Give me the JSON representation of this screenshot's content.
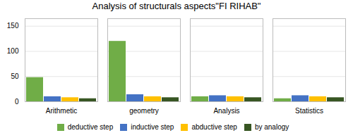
{
  "chart_data": {
    "type": "bar",
    "title": "Analysis of structurals aspects\"FI RIHAB\"",
    "categories": [
      "Arithmetic",
      "geometry",
      "Analysis",
      "Statistics"
    ],
    "series": [
      {
        "name": "deductive step",
        "color": "#70ad47",
        "values": [
          48,
          120,
          10,
          6
        ]
      },
      {
        "name": "inductive step",
        "color": "#4472c4",
        "values": [
          10,
          14,
          12,
          12
        ]
      },
      {
        "name": "abductive step",
        "color": "#ffc000",
        "values": [
          8,
          10,
          10,
          10
        ]
      },
      {
        "name": "by analogy",
        "color": "#375623",
        "values": [
          6,
          8,
          8,
          8
        ]
      }
    ],
    "ylim": [
      0,
      165
    ],
    "yticks": [
      0,
      50,
      100,
      150
    ],
    "grid": true,
    "legend": "bottom"
  }
}
